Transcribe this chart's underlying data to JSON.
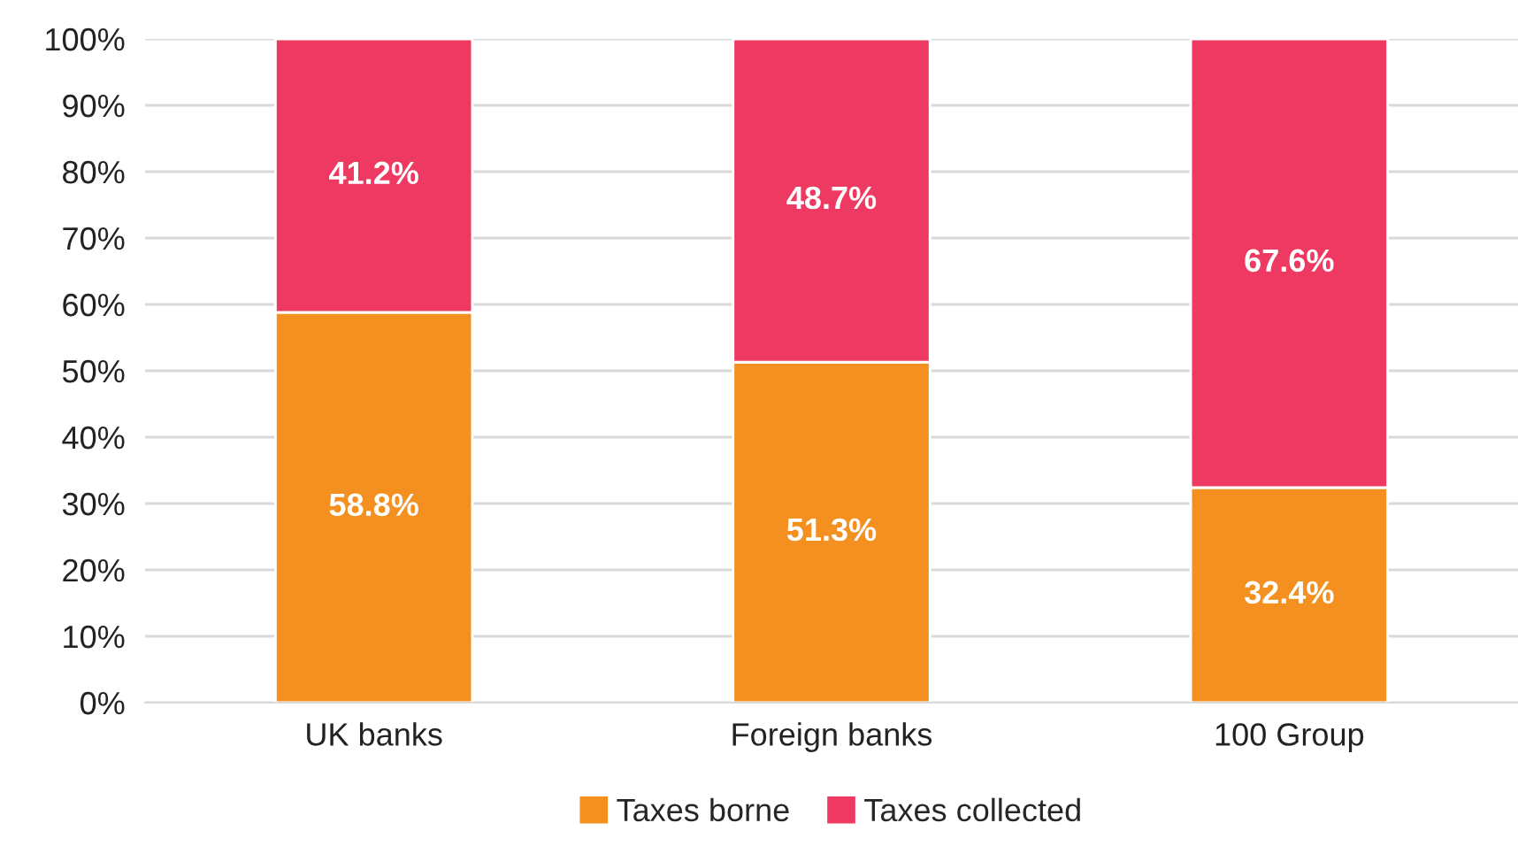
{
  "chart_data": {
    "type": "bar",
    "stacked": true,
    "categories": [
      "UK banks",
      "Foreign banks",
      "100 Group"
    ],
    "series": [
      {
        "name": "Taxes borne",
        "color": "#f39020",
        "values": [
          58.8,
          51.3,
          32.4
        ],
        "value_labels": [
          "58.8%",
          "51.3%",
          "32.4%"
        ]
      },
      {
        "name": "Taxes collected",
        "color": "#ee3a62",
        "values": [
          41.2,
          48.7,
          67.6
        ],
        "value_labels": [
          "41.2%",
          "48.7%",
          "67.6%"
        ]
      }
    ],
    "ylim": [
      0,
      100
    ],
    "yticks": [
      {
        "value": 0,
        "label": "0%"
      },
      {
        "value": 10,
        "label": "10%"
      },
      {
        "value": 20,
        "label": "20%"
      },
      {
        "value": 30,
        "label": "30%"
      },
      {
        "value": 40,
        "label": "40%"
      },
      {
        "value": 50,
        "label": "50%"
      },
      {
        "value": 60,
        "label": "60%"
      },
      {
        "value": 70,
        "label": "70%"
      },
      {
        "value": 80,
        "label": "80%"
      },
      {
        "value": 90,
        "label": "90%"
      },
      {
        "value": 100,
        "label": "100%"
      }
    ],
    "grid": "y",
    "legend": "bottom"
  }
}
